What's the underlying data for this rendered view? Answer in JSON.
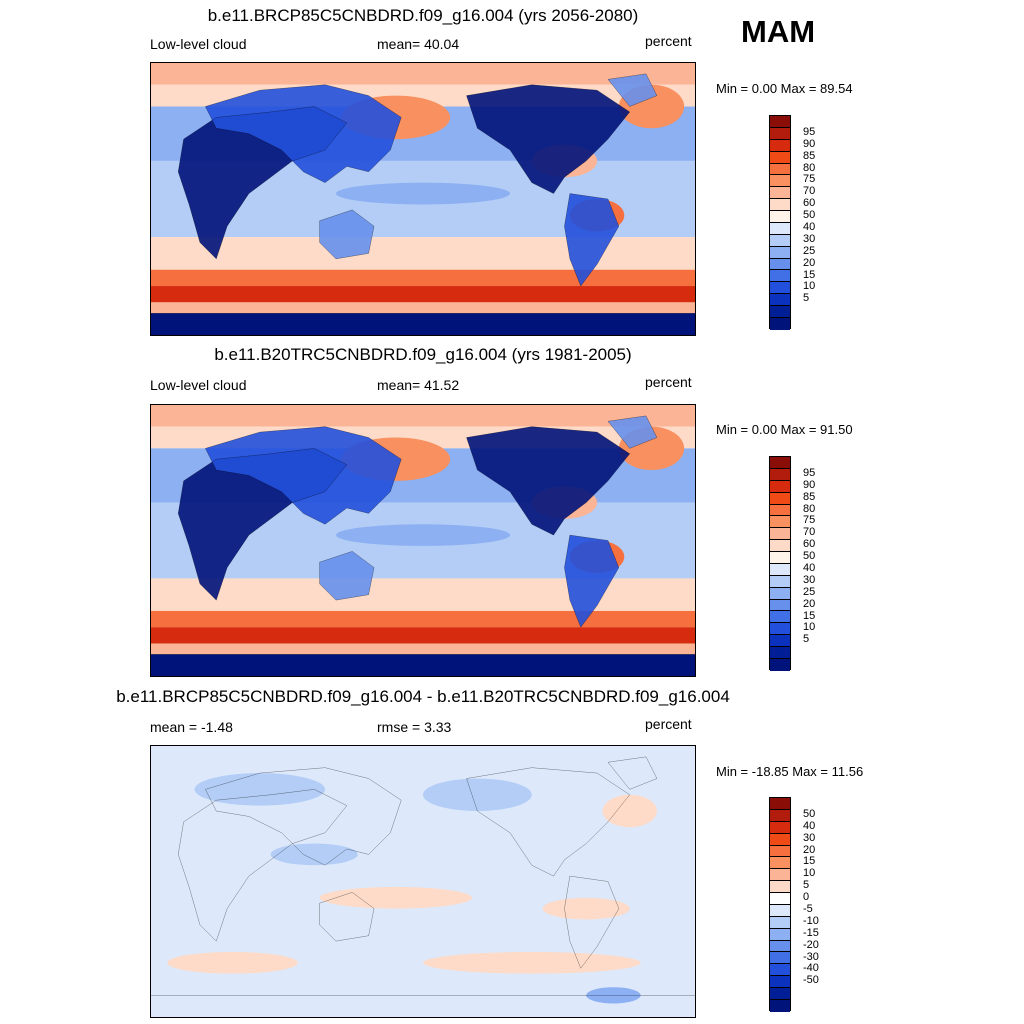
{
  "season": "MAM",
  "abs_colors": [
    "#8b0d07",
    "#b21c0c",
    "#d62b0e",
    "#f04a17",
    "#f5703e",
    "#f89060",
    "#fbb496",
    "#fddbc8",
    "#fff4ea",
    "#dde9fb",
    "#b3cdf6",
    "#8cb0f2",
    "#6790ec",
    "#4170e6",
    "#2250dc",
    "#0a32bf",
    "#001f96",
    "#00137a"
  ],
  "diff_colors": [
    "#8b0d07",
    "#b21c0c",
    "#d62b0e",
    "#f04a17",
    "#f5703e",
    "#f89060",
    "#fbb496",
    "#fddbc8",
    "#ffffff",
    "#dde9fb",
    "#b3cdf6",
    "#8cb0f2",
    "#6790ec",
    "#4170e6",
    "#2250dc",
    "#0a32bf",
    "#001f96",
    "#00137a"
  ],
  "abs_ticks": [
    "95",
    "90",
    "85",
    "80",
    "75",
    "70",
    "60",
    "50",
    "40",
    "30",
    "25",
    "20",
    "15",
    "10",
    "5"
  ],
  "diff_ticks": [
    "50",
    "40",
    "30",
    "20",
    "15",
    "10",
    "5",
    "0",
    "-5",
    "-10",
    "-15",
    "-20",
    "-30",
    "-40",
    "-50"
  ],
  "panels": [
    {
      "title": "b.e11.BRCP85C5CNBDRD.f09_g16.004 (yrs 2056-2080)",
      "left_label": "Low-level cloud",
      "mid_label": "mean=  40.04",
      "right_label": "percent",
      "minmax": "Min =   0.00 Max =  89.54",
      "kind": "abs"
    },
    {
      "title": "b.e11.B20TRC5CNBDRD.f09_g16.004 (yrs 1981-2005)",
      "left_label": "Low-level cloud",
      "mid_label": "mean=  41.52",
      "right_label": "percent",
      "minmax": "Min =   0.00 Max =  91.50",
      "kind": "abs"
    },
    {
      "title": "b.e11.BRCP85C5CNBDRD.f09_g16.004 - b.e11.B20TRC5CNBDRD.f09_g16.004",
      "left_label": "mean =  -1.48",
      "mid_label": "rmse =   3.33",
      "right_label": "percent",
      "minmax": "Min = -18.85 Max =  11.56",
      "kind": "diff"
    }
  ]
}
